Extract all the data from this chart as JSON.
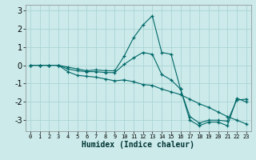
{
  "xlabel": "Humidex (Indice chaleur)",
  "ylabel": "",
  "bg_color": "#cceaea",
  "grid_color": "#aad4d4",
  "line_color": "#006868",
  "xlim": [
    -0.5,
    23.5
  ],
  "ylim": [
    -3.6,
    3.3
  ],
  "yticks": [
    -3,
    -2,
    -1,
    0,
    1,
    2,
    3
  ],
  "xticks": [
    0,
    1,
    2,
    3,
    4,
    5,
    6,
    7,
    8,
    9,
    10,
    11,
    12,
    13,
    14,
    15,
    16,
    17,
    18,
    19,
    20,
    21,
    22,
    23
  ],
  "series": [
    [
      0,
      0,
      0,
      0,
      -0.1,
      -0.2,
      -0.3,
      -0.25,
      -0.3,
      -0.3,
      0.5,
      1.5,
      2.2,
      2.7,
      0.7,
      0.6,
      -1.3,
      -3.0,
      -3.3,
      -3.1,
      -3.1,
      -3.3,
      -1.8,
      -2.0
    ],
    [
      0,
      0,
      0,
      0,
      -0.2,
      -0.3,
      -0.35,
      -0.35,
      -0.4,
      -0.4,
      0.05,
      0.4,
      0.7,
      0.6,
      -0.5,
      -0.8,
      -1.3,
      -2.8,
      -3.15,
      -3.0,
      -3.0,
      -3.05,
      -1.9,
      -1.85
    ],
    [
      0,
      0,
      0,
      0,
      -0.35,
      -0.55,
      -0.6,
      -0.65,
      -0.75,
      -0.85,
      -0.8,
      -0.9,
      -1.05,
      -1.1,
      -1.3,
      -1.45,
      -1.6,
      -1.85,
      -2.1,
      -2.3,
      -2.55,
      -2.8,
      -3.0,
      -3.2
    ]
  ],
  "xlabel_fontsize": 7,
  "ytick_fontsize": 7,
  "xtick_fontsize": 5
}
